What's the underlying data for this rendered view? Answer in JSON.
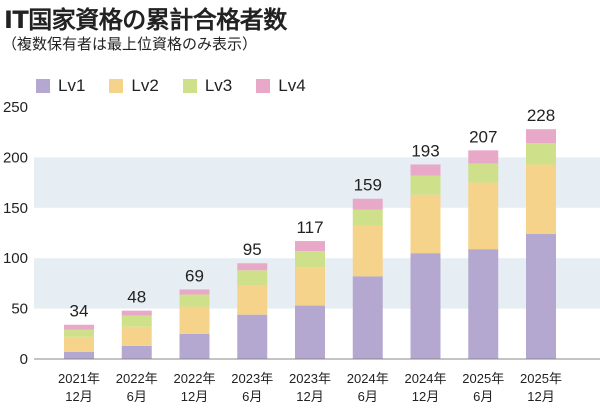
{
  "title": "IT国家資格の累計合格者数",
  "subtitle": "（複数保有者は最上位資格のみ表示）",
  "colors": {
    "Lv1": "#b4a8d0",
    "Lv2": "#f5d38a",
    "Lv3": "#cfe08a",
    "Lv4": "#e8a9c9",
    "band": "#e6eef4"
  },
  "chart_data": {
    "type": "bar",
    "stacked": true,
    "title": "IT国家資格の累計合格者数",
    "subtitle": "（複数保有者は最上位資格のみ表示）",
    "legend_position": "top-left",
    "grid": true,
    "ylim": [
      0,
      250
    ],
    "yticks": [
      "0",
      "50",
      "100",
      "150",
      "200",
      "250"
    ],
    "categories": [
      [
        "2021年",
        "12月"
      ],
      [
        "2022年",
        "6月"
      ],
      [
        "2022年",
        "12月"
      ],
      [
        "2023年",
        "6月"
      ],
      [
        "2023年",
        "12月"
      ],
      [
        "2024年",
        "6月"
      ],
      [
        "2024年",
        "12月"
      ],
      [
        "2025年",
        "6月"
      ],
      [
        "2025年",
        "12月"
      ]
    ],
    "series": [
      {
        "name": "Lv1",
        "values": [
          7,
          13,
          25,
          44,
          53,
          82,
          105,
          109,
          124
        ]
      },
      {
        "name": "Lv2",
        "values": [
          15,
          19,
          27,
          29,
          38,
          50,
          58,
          66,
          69
        ]
      },
      {
        "name": "Lv3",
        "values": [
          7,
          11,
          12,
          15,
          16,
          16,
          19,
          19,
          21
        ]
      },
      {
        "name": "Lv4",
        "values": [
          5,
          5,
          5,
          7,
          10,
          11,
          11,
          13,
          14
        ]
      }
    ],
    "totals": [
      "34",
      "48",
      "69",
      "95",
      "117",
      "159",
      "193",
      "207",
      "228"
    ]
  }
}
